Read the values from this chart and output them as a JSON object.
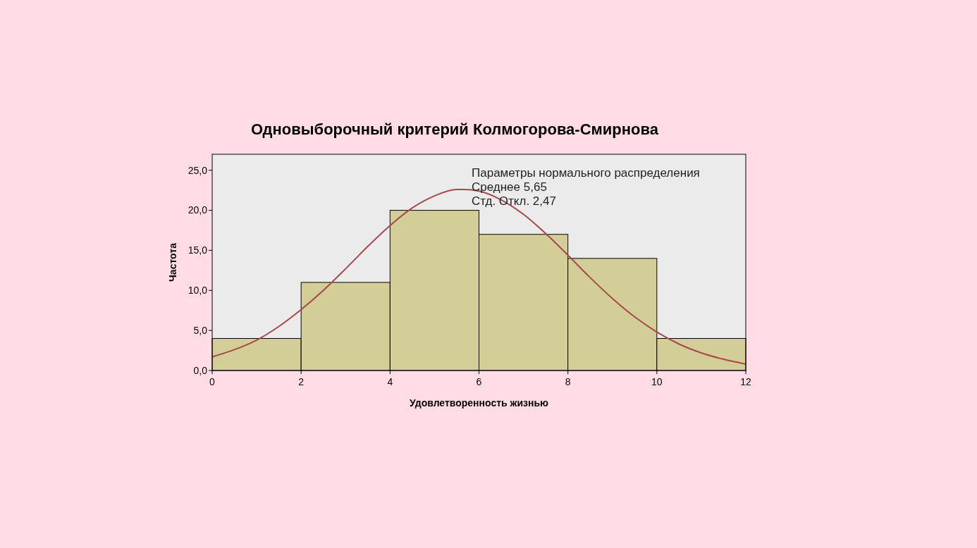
{
  "chart_data": {
    "type": "histogram",
    "title": "Одновыборочный критерий Колмогорова-Смирнова",
    "xlabel": "Удовлетворенность жизнью",
    "ylabel": "Частота",
    "annotations": [
      "Параметры нормального распределения",
      "Среднее 5,65",
      "Стд. Откл. 2,47"
    ],
    "bins": [
      0,
      2,
      4,
      6,
      8,
      10,
      12
    ],
    "xlim": [
      0,
      12
    ],
    "xticks": [
      0,
      2,
      4,
      6,
      8,
      10,
      12
    ],
    "ylim": [
      0,
      27
    ],
    "yticks": [
      {
        "value": 0,
        "label": "0,0"
      },
      {
        "value": 5,
        "label": "5,0"
      },
      {
        "value": 10,
        "label": "10,0"
      },
      {
        "value": 15,
        "label": "15,0"
      },
      {
        "value": 20,
        "label": "20,0"
      },
      {
        "value": 25,
        "label": "25,0"
      }
    ],
    "grid": false,
    "series": [
      {
        "color": "#d3cd98",
        "values": [
          4,
          11,
          20,
          17,
          14,
          4
        ]
      },
      {
        "type": "line",
        "color": "#a84848",
        "x": [
          0,
          0.5,
          1,
          1.5,
          2,
          2.5,
          3,
          3.5,
          4,
          4.5,
          5,
          5.5,
          5.65,
          6,
          6.5,
          7,
          7.5,
          8,
          8.5,
          9,
          9.5,
          10,
          10.5,
          11,
          11.5,
          12
        ],
        "values": [
          1.7,
          2.6,
          3.8,
          5.5,
          7.6,
          10.0,
          12.7,
          15.5,
          18.1,
          20.3,
          21.8,
          22.6,
          22.6,
          22.4,
          21.3,
          19.5,
          17.1,
          14.4,
          11.6,
          9.0,
          6.7,
          4.8,
          3.3,
          2.2,
          1.4,
          0.8
        ]
      }
    ]
  }
}
